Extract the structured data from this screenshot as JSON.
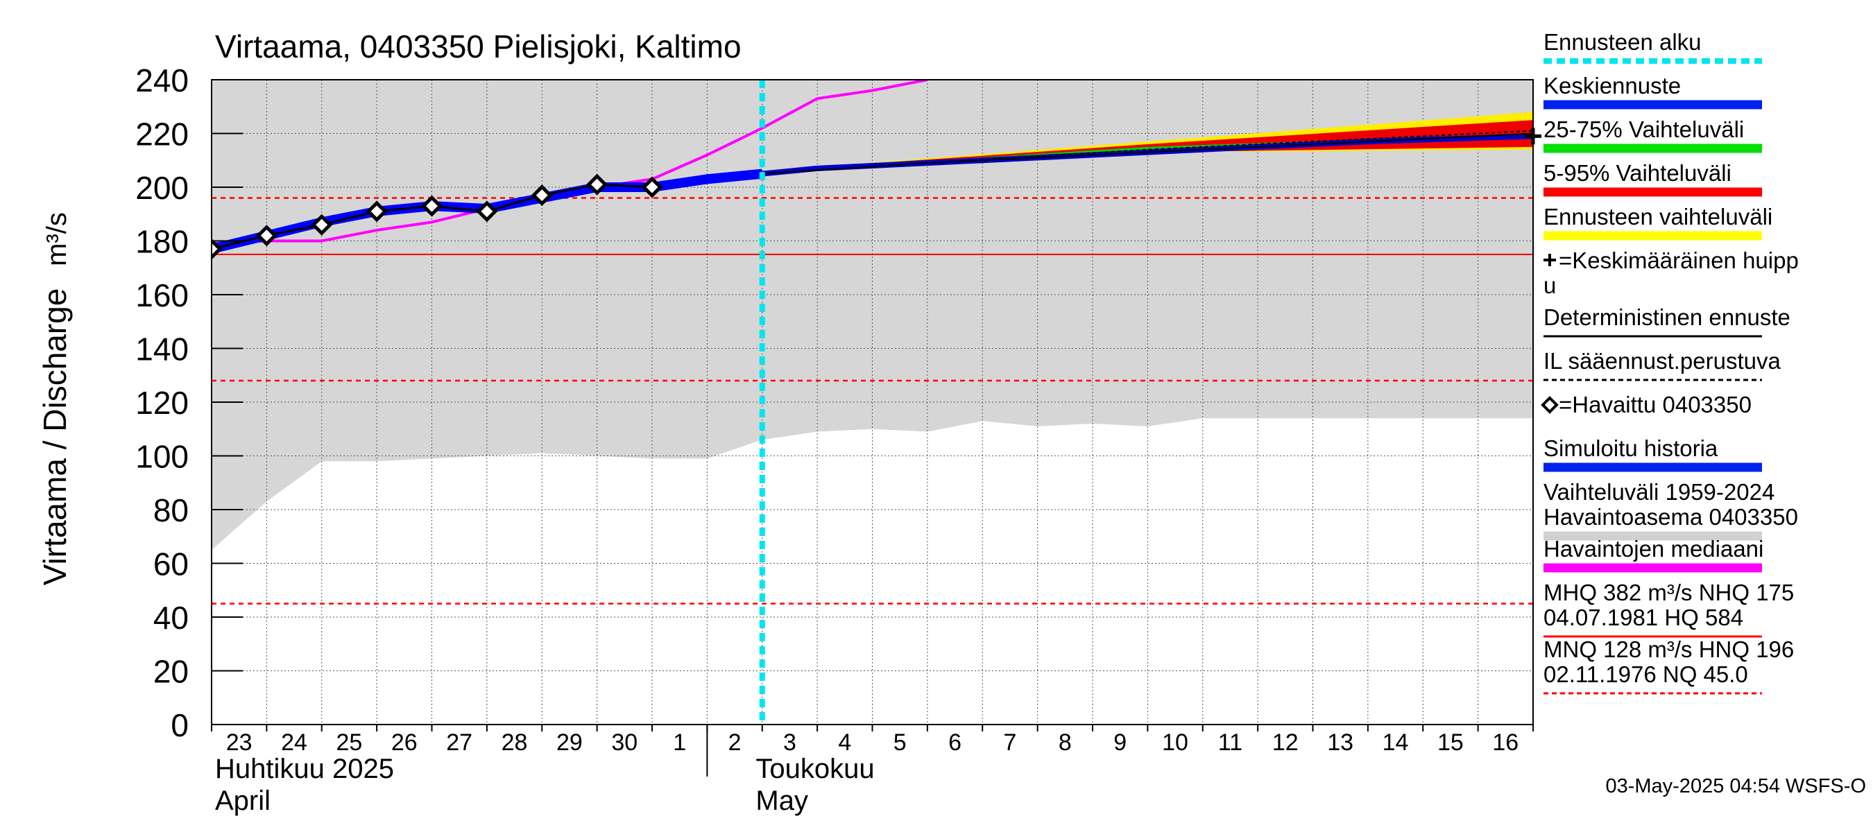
{
  "chart_data": {
    "type": "line",
    "title": "Virtaama, 0403350 Pielisjoki, Kaltimo",
    "ylabel": "Virtaama / Discharge",
    "yunit": "m³/s",
    "ylim": [
      0,
      240
    ],
    "yticks": [
      "0",
      "20",
      "40",
      "60",
      "80",
      "100",
      "120",
      "140",
      "160",
      "180",
      "200",
      "220",
      "240"
    ],
    "xlim": [
      "2025-04-23",
      "2025-05-17"
    ],
    "day_labels": [
      "23",
      "24",
      "25",
      "26",
      "27",
      "28",
      "29",
      "30",
      "1",
      "2",
      "3",
      "4",
      "5",
      "6",
      "7",
      "8",
      "9",
      "10",
      "11",
      "12",
      "13",
      "14",
      "15",
      "16"
    ],
    "month_labels": [
      {
        "fi": "Huhtikuu  2025",
        "en": "April",
        "date": "2025-04-23"
      },
      {
        "fi": "Toukokuu",
        "en": "May",
        "date": "2025-05-02"
      }
    ],
    "grid": true,
    "forecast_start": "2025-05-03",
    "reference_lines": {
      "nhq": 175,
      "hnq": 196,
      "mnq": 128,
      "nq": 45.0
    },
    "historical_range": {
      "x": [
        "2025-04-23",
        "2025-04-24",
        "2025-04-25",
        "2025-04-26",
        "2025-04-27",
        "2025-04-28",
        "2025-04-29",
        "2025-04-30",
        "2025-05-01",
        "2025-05-02",
        "2025-05-03",
        "2025-05-04",
        "2025-05-05",
        "2025-05-06",
        "2025-05-07",
        "2025-05-08",
        "2025-05-09",
        "2025-05-10",
        "2025-05-11",
        "2025-05-12",
        "2025-05-13",
        "2025-05-14",
        "2025-05-15",
        "2025-05-16",
        "2025-05-17"
      ],
      "low": [
        65,
        83,
        98,
        98,
        99,
        100,
        101,
        100,
        99,
        99,
        106,
        109,
        110,
        109,
        113,
        111,
        112,
        111,
        114,
        114,
        114,
        114,
        114,
        114,
        114
      ],
      "high": [
        240,
        240,
        240,
        240,
        240,
        240,
        240,
        240,
        240,
        240,
        240,
        240,
        240,
        240,
        240,
        240,
        240,
        240,
        240,
        240,
        240,
        240,
        240,
        240,
        240
      ]
    },
    "forecast_band_yellow": {
      "x": [
        "2025-05-03",
        "2025-05-10",
        "2025-05-17"
      ],
      "low": [
        205,
        213,
        214
      ],
      "high": [
        206,
        217,
        228
      ]
    },
    "forecast_band_red": {
      "x": [
        "2025-05-03",
        "2025-05-10",
        "2025-05-17"
      ],
      "low": [
        205,
        213,
        215
      ],
      "high": [
        206,
        216,
        225
      ]
    },
    "forecast_band_green": {
      "x": [
        "2025-05-03",
        "2025-05-10",
        "2025-05-17"
      ],
      "low": [
        205,
        214,
        218
      ],
      "high": [
        206,
        215,
        220
      ]
    },
    "series": [
      {
        "name": "Havaintojen mediaani",
        "color": "#ff00ff",
        "x": [
          "2025-04-23",
          "2025-04-24",
          "2025-04-25",
          "2025-04-26",
          "2025-04-27",
          "2025-04-28",
          "2025-04-29",
          "2025-04-30",
          "2025-05-01",
          "2025-05-02",
          "2025-05-03",
          "2025-05-04",
          "2025-05-05",
          "2025-05-06"
        ],
        "y": [
          179,
          180,
          180,
          184,
          187,
          192,
          196,
          200,
          203,
          212,
          222,
          233,
          236,
          240
        ]
      },
      {
        "name": "Simuloitu historia",
        "color": "#0000ff",
        "x": [
          "2025-04-23",
          "2025-04-24",
          "2025-04-25",
          "2025-04-26",
          "2025-04-27",
          "2025-04-28",
          "2025-04-29",
          "2025-04-30",
          "2025-05-01",
          "2025-05-02",
          "2025-05-03"
        ],
        "y": [
          177,
          182,
          187,
          191,
          193,
          192,
          196,
          200,
          200,
          203,
          205
        ]
      },
      {
        "name": "Keskiennuste",
        "color": "#0000ff",
        "x": [
          "2025-05-03",
          "2025-05-04",
          "2025-05-06",
          "2025-05-08",
          "2025-05-10",
          "2025-05-12",
          "2025-05-14",
          "2025-05-17"
        ],
        "y": [
          205,
          207,
          209,
          211,
          213,
          215,
          217,
          219
        ]
      },
      {
        "name": "Deterministinen ennuste",
        "color": "#000000",
        "x": [
          "2025-05-03",
          "2025-05-06",
          "2025-05-10",
          "2025-05-14",
          "2025-05-17"
        ],
        "y": [
          205,
          209,
          213,
          217,
          220
        ]
      },
      {
        "name": "IL sääennust.perustuva",
        "color": "#000000",
        "x": [
          "2025-05-03",
          "2025-05-06",
          "2025-05-10",
          "2025-05-14",
          "2025-05-17"
        ],
        "y": [
          205,
          209,
          214,
          218,
          221
        ]
      },
      {
        "name": "Havaittu 0403350",
        "color": "#000000",
        "x": [
          "2025-04-23",
          "2025-04-24",
          "2025-04-25",
          "2025-04-26",
          "2025-04-27",
          "2025-04-28",
          "2025-04-29",
          "2025-04-30",
          "2025-05-01"
        ],
        "y": [
          177,
          182,
          186,
          191,
          193,
          191,
          197,
          201,
          200
        ]
      }
    ],
    "mean_peak": {
      "x": "2025-05-17",
      "y": 219
    }
  },
  "legend": {
    "items": [
      {
        "label": "Ennusteen alku",
        "color": "#00e5ee",
        "style": "dashed"
      },
      {
        "label": "Keskiennuste",
        "color": "#0022ee",
        "style": "solid"
      },
      {
        "label": "25-75% Vaihteluväli",
        "color": "#00e000",
        "style": "solid"
      },
      {
        "label": "5-95% Vaihteluväli",
        "color": "#ff0000",
        "style": "solid"
      },
      {
        "label": "Ennusteen vaihteluväli",
        "color": "#ffff00",
        "style": "solid"
      },
      {
        "label": "=Keskimääräinen huipp",
        "label2": "u",
        "color": "#000000",
        "style": "none",
        "marker": "plus"
      },
      {
        "label": "Deterministinen ennuste",
        "color": "#000000",
        "style": "thin"
      },
      {
        "label": "IL sääennust.perustuva",
        "color": "#000000",
        "style": "dashed-thin"
      },
      {
        "label": "=Havaittu 0403350",
        "color": "#000000",
        "style": "none",
        "marker": "diamond"
      },
      {
        "label": "Simuloitu historia",
        "color": "#0022ee",
        "style": "solid"
      },
      {
        "label": "Vaihteluväli 1959-2024",
        "label2": " Havaintoasema 0403350",
        "color": "#d0d0d0",
        "style": "solid"
      },
      {
        "label": "Havaintojen mediaani",
        "color": "#ff00ff",
        "style": "solid"
      },
      {
        "label": "MHQ  382 m³/s NHQ  175",
        "label2": "04.07.1981 HQ  584",
        "color": "#ff0000",
        "style": "thin"
      },
      {
        "label": "MNQ  128 m³/s HNQ  196",
        "label2": "02.11.1976 NQ 45.0",
        "color": "#ff0000",
        "style": "dashed-thin"
      }
    ]
  },
  "footer": {
    "timestamp": "03-May-2025 04:54 WSFS-O"
  }
}
